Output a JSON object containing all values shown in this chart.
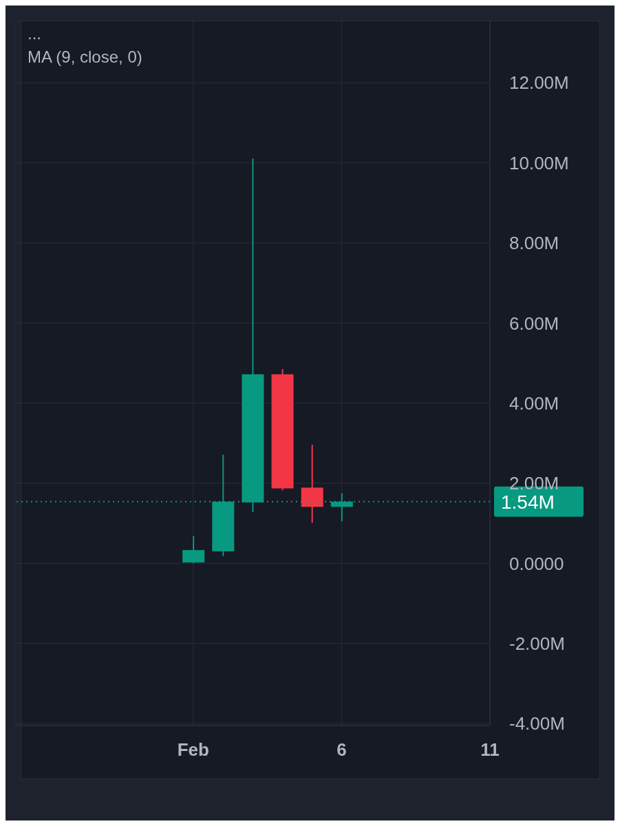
{
  "chart_data": {
    "type": "candlestick",
    "annotations": [
      "...",
      "MA (9, close, 0)"
    ],
    "x": [
      "--02-01",
      "--02-02",
      "--02-03",
      "--02-04",
      "--02-05",
      "--02-06"
    ],
    "ohlc": [
      [
        20000,
        680000,
        0,
        330000
      ],
      [
        300000,
        2710000,
        180000,
        1540000
      ],
      [
        1520000,
        10110000,
        1280000,
        4720000
      ],
      [
        4720000,
        4850000,
        1820000,
        1870000
      ],
      [
        1890000,
        2960000,
        1010000,
        1410000
      ],
      [
        1410000,
        1750000,
        1050000,
        1540000
      ]
    ],
    "colors": [
      "#089981",
      "#089981",
      "#089981",
      "#f23645",
      "#f23645",
      "#089981"
    ],
    "xlim": [
      "--01-26",
      "--02-11"
    ],
    "xticks": [
      {
        "value": "--02-01",
        "label": "Feb"
      },
      {
        "value": "--02-06",
        "label": "6"
      },
      {
        "value": "--02-11",
        "label": "11"
      }
    ],
    "ylim": [
      -4050000,
      13550000
    ],
    "yticks": [
      {
        "value": -4000000,
        "label": "-4.00M"
      },
      {
        "value": -2000000,
        "label": "-2.00M"
      },
      {
        "value": 0,
        "label": "0.0000"
      },
      {
        "value": 2000000,
        "label": "2.00M"
      },
      {
        "value": 4000000,
        "label": "4.00M"
      },
      {
        "value": 6000000,
        "label": "6.00M"
      },
      {
        "value": 8000000,
        "label": "8.00M"
      },
      {
        "value": 10000000,
        "label": "10.00M"
      },
      {
        "value": 12000000,
        "label": "12.00M"
      }
    ],
    "ref_lines": [
      {
        "axis": "y",
        "value": 1540000,
        "label": "1.54M",
        "color": "#089981",
        "line_style": "dotted"
      }
    ],
    "grid": true
  }
}
